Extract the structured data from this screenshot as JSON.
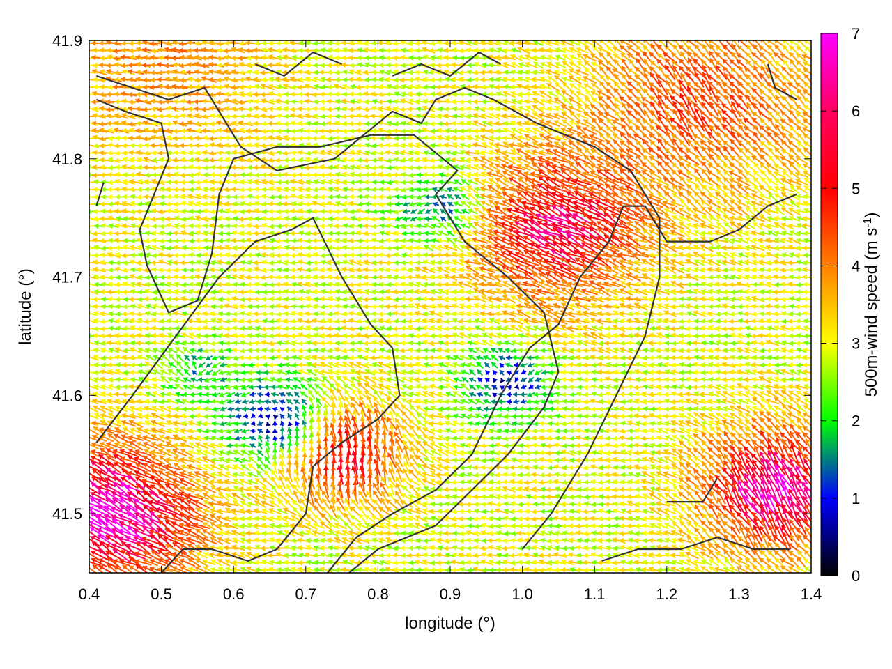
{
  "chart_data": {
    "type": "vector-field",
    "xlabel": "longitude (°)",
    "ylabel": "latitude (°)",
    "xlim": [
      0.4,
      1.4
    ],
    "ylim": [
      41.45,
      41.9
    ],
    "xticks": [
      "0.4",
      "0.5",
      "0.6",
      "0.7",
      "0.8",
      "0.9",
      "1.0",
      "1.1",
      "1.2",
      "1.3",
      "1.4"
    ],
    "yticks": [
      "41.5",
      "41.6",
      "41.7",
      "41.8",
      "41.9"
    ],
    "colorbar": {
      "label_main": "500m-wind speed (m s",
      "label_sup": "-1",
      "label_end": ")",
      "range": [
        0,
        7
      ],
      "ticks": [
        "0",
        "1",
        "2",
        "3",
        "4",
        "5",
        "6",
        "7"
      ],
      "colors": [
        "#000000",
        "#0000ff",
        "#00ff00",
        "#ffff00",
        "#ff8000",
        "#ff0000",
        "#ff00ff"
      ]
    },
    "grid": false,
    "contour_color": "#333333",
    "contours": [
      [
        [
          0.41,
          41.87
        ],
        [
          0.46,
          41.86
        ],
        [
          0.51,
          41.85
        ],
        [
          0.56,
          41.86
        ],
        [
          0.58,
          41.84
        ],
        [
          0.61,
          41.81
        ],
        [
          0.66,
          41.79
        ],
        [
          0.74,
          41.8
        ],
        [
          0.78,
          41.82
        ],
        [
          0.82,
          41.84
        ],
        [
          0.86,
          41.83
        ],
        [
          0.88,
          41.85
        ],
        [
          0.92,
          41.86
        ],
        [
          0.96,
          41.85
        ],
        [
          1.02,
          41.83
        ],
        [
          1.1,
          41.81
        ],
        [
          1.15,
          41.79
        ],
        [
          1.19,
          41.75
        ],
        [
          1.19,
          41.7
        ],
        [
          1.17,
          41.65
        ],
        [
          1.13,
          41.6
        ],
        [
          1.09,
          41.55
        ],
        [
          1.04,
          41.5
        ],
        [
          1.0,
          41.47
        ]
      ],
      [
        [
          0.41,
          41.85
        ],
        [
          0.45,
          41.84
        ],
        [
          0.5,
          41.83
        ],
        [
          0.51,
          41.8
        ],
        [
          0.49,
          41.77
        ],
        [
          0.47,
          41.74
        ],
        [
          0.48,
          41.71
        ],
        [
          0.51,
          41.67
        ],
        [
          0.55,
          41.68
        ],
        [
          0.57,
          41.72
        ],
        [
          0.58,
          41.77
        ],
        [
          0.6,
          41.8
        ],
        [
          0.66,
          41.81
        ],
        [
          0.72,
          41.81
        ],
        [
          0.79,
          41.82
        ],
        [
          0.85,
          41.82
        ],
        [
          0.91,
          41.79
        ],
        [
          0.88,
          41.77
        ],
        [
          0.92,
          41.73
        ],
        [
          0.98,
          41.7
        ],
        [
          1.03,
          41.67
        ],
        [
          1.05,
          41.62
        ],
        [
          1.03,
          41.59
        ],
        [
          0.98,
          41.55
        ],
        [
          0.93,
          41.52
        ],
        [
          0.88,
          41.49
        ],
        [
          0.8,
          41.47
        ],
        [
          0.74,
          41.44
        ]
      ],
      [
        [
          0.41,
          41.56
        ],
        [
          0.46,
          41.6
        ],
        [
          0.52,
          41.65
        ],
        [
          0.58,
          41.7
        ],
        [
          0.63,
          41.73
        ],
        [
          0.68,
          41.74
        ],
        [
          0.71,
          41.75
        ],
        [
          0.75,
          41.7
        ],
        [
          0.79,
          41.66
        ],
        [
          0.82,
          41.64
        ],
        [
          0.83,
          41.6
        ],
        [
          0.8,
          41.58
        ],
        [
          0.75,
          41.56
        ],
        [
          0.71,
          41.54
        ],
        [
          0.7,
          41.5
        ],
        [
          0.66,
          41.47
        ],
        [
          0.62,
          41.46
        ],
        [
          0.57,
          41.47
        ],
        [
          0.53,
          41.47
        ],
        [
          0.5,
          41.45
        ]
      ],
      [
        [
          0.73,
          41.45
        ],
        [
          0.77,
          41.48
        ],
        [
          0.82,
          41.5
        ],
        [
          0.88,
          41.52
        ],
        [
          0.93,
          41.55
        ],
        [
          0.97,
          41.6
        ],
        [
          1.01,
          41.64
        ],
        [
          1.05,
          41.66
        ],
        [
          1.08,
          41.7
        ],
        [
          1.12,
          41.73
        ],
        [
          1.14,
          41.76
        ],
        [
          1.17,
          41.76
        ],
        [
          1.2,
          41.73
        ],
        [
          1.26,
          41.73
        ],
        [
          1.3,
          41.74
        ],
        [
          1.34,
          41.76
        ],
        [
          1.38,
          41.77
        ]
      ],
      [
        [
          1.11,
          41.46
        ],
        [
          1.16,
          41.47
        ],
        [
          1.22,
          41.47
        ],
        [
          1.27,
          41.48
        ],
        [
          1.32,
          41.47
        ],
        [
          1.37,
          41.47
        ]
      ],
      [
        [
          0.82,
          41.87
        ],
        [
          0.86,
          41.88
        ],
        [
          0.9,
          41.87
        ],
        [
          0.94,
          41.89
        ],
        [
          0.97,
          41.88
        ]
      ],
      [
        [
          0.63,
          41.88
        ],
        [
          0.67,
          41.87
        ],
        [
          0.71,
          41.89
        ],
        [
          0.75,
          41.88
        ]
      ],
      [
        [
          1.34,
          41.88
        ],
        [
          1.35,
          41.86
        ],
        [
          1.38,
          41.85
        ]
      ],
      [
        [
          1.2,
          41.51
        ],
        [
          1.25,
          41.51
        ],
        [
          1.27,
          41.53
        ]
      ],
      [
        [
          0.41,
          41.76
        ],
        [
          0.42,
          41.78
        ]
      ]
    ],
    "vortices": [
      {
        "lon": 0.65,
        "lat": 41.58,
        "r": 0.07,
        "speed": 0.9,
        "turn": 1
      },
      {
        "lon": 0.98,
        "lat": 41.61,
        "r": 0.06,
        "speed": 1.0,
        "turn": -1
      },
      {
        "lon": 0.88,
        "lat": 41.76,
        "r": 0.06,
        "speed": 1.8,
        "turn": 1
      },
      {
        "lon": 0.55,
        "lat": 41.62,
        "r": 0.05,
        "speed": 2.0,
        "turn": -1
      }
    ],
    "jets": [
      {
        "lon": 0.43,
        "lat": 41.5,
        "r": 0.12,
        "speed": 7.0,
        "dir": 145
      },
      {
        "lon": 1.35,
        "lat": 41.52,
        "r": 0.1,
        "speed": 6.8,
        "dir": 110
      },
      {
        "lon": 1.05,
        "lat": 41.74,
        "r": 0.12,
        "speed": 6.2,
        "dir": 150
      },
      {
        "lon": 0.75,
        "lat": 41.55,
        "r": 0.08,
        "speed": 6.0,
        "dir": 80
      },
      {
        "lon": 1.25,
        "lat": 41.85,
        "r": 0.15,
        "speed": 5.2,
        "dir": 120
      },
      {
        "lon": 0.5,
        "lat": 41.88,
        "r": 0.15,
        "speed": 4.5,
        "dir": 175
      }
    ]
  }
}
